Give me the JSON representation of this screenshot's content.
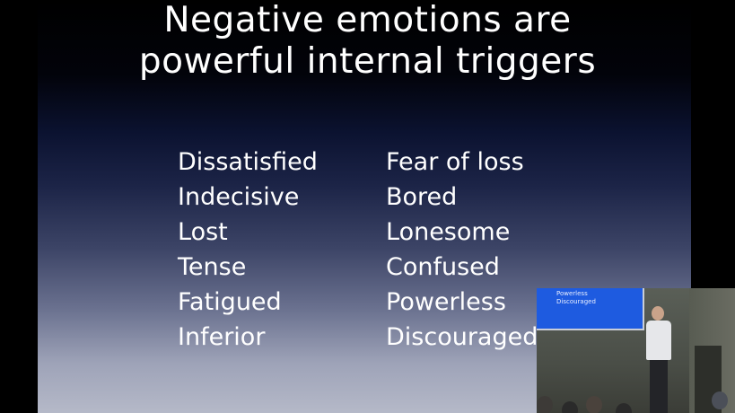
{
  "slide": {
    "title_lines": [
      "Negative emotions are",
      "powerful internal triggers"
    ],
    "left_column": [
      "Dissatisfied",
      "Indecisive",
      "Lost",
      "Tense",
      "Fatigued",
      "Inferior"
    ],
    "right_column": [
      "Fear of loss",
      "Bored",
      "Lonesome",
      "Confused",
      "Powerless",
      "Discouraged"
    ]
  },
  "video_inset": {
    "screen_lines": [
      "Powerless",
      "Discouraged"
    ]
  }
}
